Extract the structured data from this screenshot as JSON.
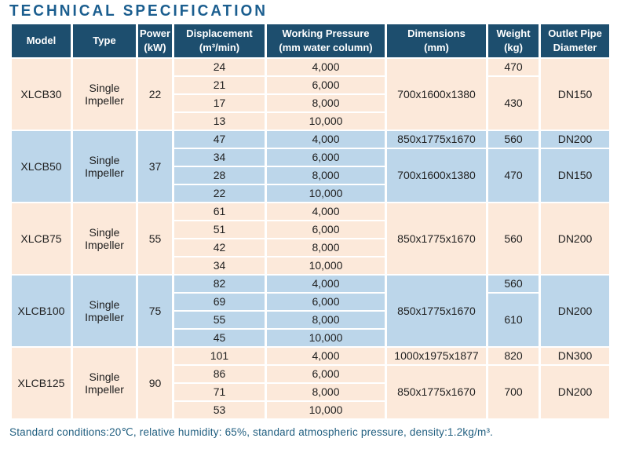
{
  "title": "TECHNICAL SPECIFICATION",
  "colors": {
    "header_bg": "#1d4e6e",
    "header_text": "#ffffff",
    "band_peach": "#fce9da",
    "band_blue": "#bcd6ea",
    "title_text": "#1b5e8f",
    "footnote_text": "#215f80",
    "grid_line": "#ffffff"
  },
  "table": {
    "columns": [
      {
        "key": "model",
        "lines": [
          "Model"
        ]
      },
      {
        "key": "type",
        "lines": [
          "Type"
        ]
      },
      {
        "key": "power",
        "lines": [
          "Power",
          "(kW)"
        ]
      },
      {
        "key": "displacement",
        "lines": [
          "Displacement",
          "(m³/min)"
        ]
      },
      {
        "key": "pressure",
        "lines": [
          "Working Pressure",
          "(mm water column)"
        ]
      },
      {
        "key": "dimensions",
        "lines": [
          "Dimensions",
          "(mm)"
        ]
      },
      {
        "key": "weight",
        "lines": [
          "Weight",
          "(kg)"
        ]
      },
      {
        "key": "outlet",
        "lines": [
          "Outlet Pipe",
          "Diameter"
        ]
      }
    ],
    "groups": [
      {
        "theme": "peach",
        "rows": [
          [
            {
              "name": "model",
              "v": "XLCB30",
              "rs": 4
            },
            {
              "name": "type",
              "v": "Single Impeller",
              "rs": 4
            },
            {
              "name": "power",
              "v": "22",
              "rs": 4
            },
            {
              "name": "displacement",
              "v": "24"
            },
            {
              "name": "pressure",
              "v": "4,000"
            },
            {
              "name": "dimensions",
              "v": "700x1600x1380",
              "rs": 4
            },
            {
              "name": "weight",
              "v": "470",
              "rs": 1
            },
            {
              "name": "outlet",
              "v": "DN150",
              "rs": 4
            }
          ],
          [
            {
              "name": "displacement",
              "v": "21"
            },
            {
              "name": "pressure",
              "v": "6,000"
            },
            {
              "name": "weight",
              "v": "430",
              "rs": 3
            }
          ],
          [
            {
              "name": "displacement",
              "v": "17"
            },
            {
              "name": "pressure",
              "v": "8,000"
            }
          ],
          [
            {
              "name": "displacement",
              "v": "13"
            },
            {
              "name": "pressure",
              "v": "10,000"
            }
          ]
        ]
      },
      {
        "theme": "blue",
        "rows": [
          [
            {
              "name": "model",
              "v": "XLCB50",
              "rs": 4
            },
            {
              "name": "type",
              "v": "Single Impeller",
              "rs": 4
            },
            {
              "name": "power",
              "v": "37",
              "rs": 4
            },
            {
              "name": "displacement",
              "v": "47"
            },
            {
              "name": "pressure",
              "v": "4,000"
            },
            {
              "name": "dimensions",
              "v": "850x1775x1670",
              "rs": 1
            },
            {
              "name": "weight",
              "v": "560",
              "rs": 1
            },
            {
              "name": "outlet",
              "v": "DN200",
              "rs": 1
            }
          ],
          [
            {
              "name": "displacement",
              "v": "34"
            },
            {
              "name": "pressure",
              "v": "6,000"
            },
            {
              "name": "dimensions",
              "v": "700x1600x1380",
              "rs": 3
            },
            {
              "name": "weight",
              "v": "470",
              "rs": 3
            },
            {
              "name": "outlet",
              "v": "DN150",
              "rs": 3
            }
          ],
          [
            {
              "name": "displacement",
              "v": "28"
            },
            {
              "name": "pressure",
              "v": "8,000"
            }
          ],
          [
            {
              "name": "displacement",
              "v": "22"
            },
            {
              "name": "pressure",
              "v": "10,000"
            }
          ]
        ]
      },
      {
        "theme": "peach",
        "rows": [
          [
            {
              "name": "model",
              "v": "XLCB75",
              "rs": 4
            },
            {
              "name": "type",
              "v": "Single Impeller",
              "rs": 4
            },
            {
              "name": "power",
              "v": "55",
              "rs": 4
            },
            {
              "name": "displacement",
              "v": "61"
            },
            {
              "name": "pressure",
              "v": "4,000"
            },
            {
              "name": "dimensions",
              "v": "850x1775x1670",
              "rs": 4
            },
            {
              "name": "weight",
              "v": "560",
              "rs": 4
            },
            {
              "name": "outlet",
              "v": "DN200",
              "rs": 4
            }
          ],
          [
            {
              "name": "displacement",
              "v": "51"
            },
            {
              "name": "pressure",
              "v": "6,000"
            }
          ],
          [
            {
              "name": "displacement",
              "v": "42"
            },
            {
              "name": "pressure",
              "v": "8,000"
            }
          ],
          [
            {
              "name": "displacement",
              "v": "34"
            },
            {
              "name": "pressure",
              "v": "10,000"
            }
          ]
        ]
      },
      {
        "theme": "blue",
        "rows": [
          [
            {
              "name": "model",
              "v": "XLCB100",
              "rs": 4
            },
            {
              "name": "type",
              "v": "Single Impeller",
              "rs": 4
            },
            {
              "name": "power",
              "v": "75",
              "rs": 4
            },
            {
              "name": "displacement",
              "v": "82"
            },
            {
              "name": "pressure",
              "v": "4,000"
            },
            {
              "name": "dimensions",
              "v": "850x1775x1670",
              "rs": 4
            },
            {
              "name": "weight",
              "v": "560",
              "rs": 1
            },
            {
              "name": "outlet",
              "v": "DN200",
              "rs": 4
            }
          ],
          [
            {
              "name": "displacement",
              "v": "69"
            },
            {
              "name": "pressure",
              "v": "6,000"
            },
            {
              "name": "weight",
              "v": "610",
              "rs": 3
            }
          ],
          [
            {
              "name": "displacement",
              "v": "55"
            },
            {
              "name": "pressure",
              "v": "8,000"
            }
          ],
          [
            {
              "name": "displacement",
              "v": "45"
            },
            {
              "name": "pressure",
              "v": "10,000"
            }
          ]
        ]
      },
      {
        "theme": "peach",
        "rows": [
          [
            {
              "name": "model",
              "v": "XLCB125",
              "rs": 4
            },
            {
              "name": "type",
              "v": "Single Impeller",
              "rs": 4
            },
            {
              "name": "power",
              "v": "90",
              "rs": 4
            },
            {
              "name": "displacement",
              "v": "101"
            },
            {
              "name": "pressure",
              "v": "4,000"
            },
            {
              "name": "dimensions",
              "v": "1000x1975x1877",
              "rs": 1
            },
            {
              "name": "weight",
              "v": "820",
              "rs": 1
            },
            {
              "name": "outlet",
              "v": "DN300",
              "rs": 1
            }
          ],
          [
            {
              "name": "displacement",
              "v": "86"
            },
            {
              "name": "pressure",
              "v": "6,000"
            },
            {
              "name": "dimensions",
              "v": "850x1775x1670",
              "rs": 3
            },
            {
              "name": "weight",
              "v": "700",
              "rs": 3
            },
            {
              "name": "outlet",
              "v": "DN200",
              "rs": 3
            }
          ],
          [
            {
              "name": "displacement",
              "v": "71"
            },
            {
              "name": "pressure",
              "v": "8,000"
            }
          ],
          [
            {
              "name": "displacement",
              "v": "53"
            },
            {
              "name": "pressure",
              "v": "10,000"
            }
          ]
        ]
      }
    ]
  },
  "footnote": "Standard conditions:20℃, relative humidity: 65%, standard atmospheric pressure, density:1.2kg/m³."
}
